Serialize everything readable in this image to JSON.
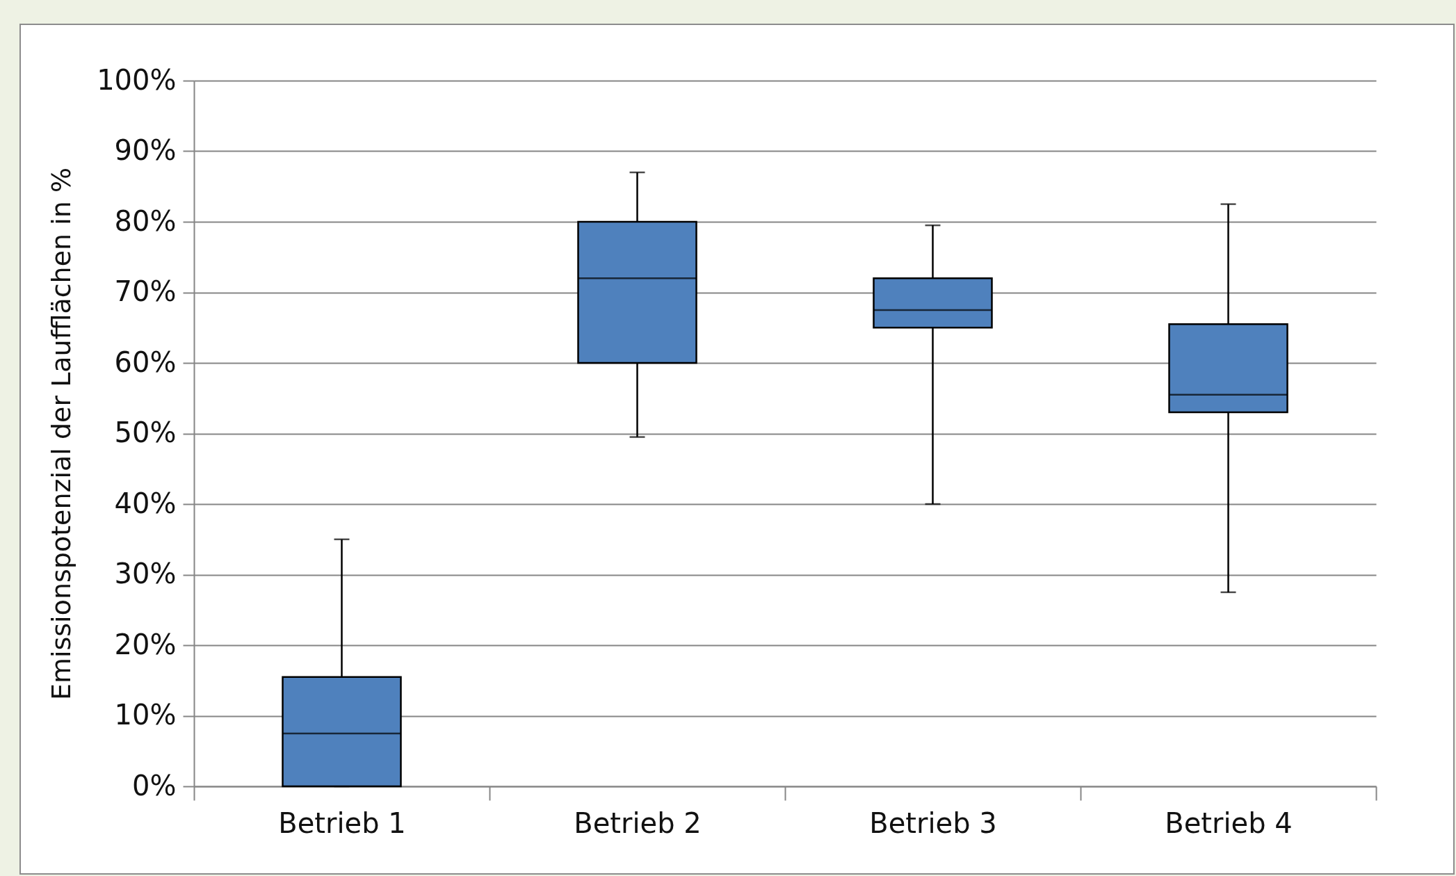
{
  "chart_data": {
    "type": "box",
    "ylabel": "Emissionspotenzial der Laufflächen in %",
    "categories": [
      "Betrieb 1",
      "Betrieb 2",
      "Betrieb 3",
      "Betrieb 4"
    ],
    "series": [
      {
        "color": "#4f81bd",
        "boxes": [
          {
            "low": 0,
            "q1": 0,
            "median": 7.5,
            "q3": 15.5,
            "high": 35
          },
          {
            "low": 49.5,
            "q1": 60,
            "median": 72,
            "q3": 80,
            "high": 87
          },
          {
            "low": 40,
            "q1": 65,
            "median": 67.5,
            "q3": 72,
            "high": 79.5
          },
          {
            "low": 27.5,
            "q1": 53,
            "median": 55.5,
            "q3": 65.5,
            "high": 82.5
          }
        ]
      }
    ],
    "ylim": [
      0,
      100
    ],
    "yticks": [
      {
        "value": 0,
        "label": "0%"
      },
      {
        "value": 10,
        "label": "10%"
      },
      {
        "value": 20,
        "label": "20%"
      },
      {
        "value": 30,
        "label": "30%"
      },
      {
        "value": 40,
        "label": "40%"
      },
      {
        "value": 50,
        "label": "50%"
      },
      {
        "value": 60,
        "label": "60%"
      },
      {
        "value": 70,
        "label": "70%"
      },
      {
        "value": 80,
        "label": "80%"
      },
      {
        "value": 90,
        "label": "90%"
      },
      {
        "value": 100,
        "label": "100%"
      }
    ],
    "grid": "y"
  }
}
